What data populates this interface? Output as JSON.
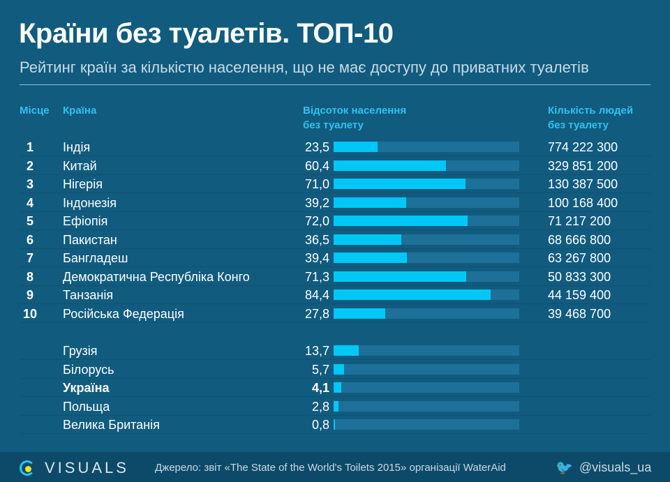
{
  "title": "Країни без туалетів. ТОП-10",
  "subtitle": "Рейтинг країн за кількістю населення, що не має доступу до приватних туалетів",
  "headers": {
    "rank": "Місце",
    "country": "Країна",
    "pct_line1": "Відсоток населення",
    "pct_line2": "без туалету",
    "count_line1": "Кількість людей",
    "count_line2": "без туалету"
  },
  "colors": {
    "background": "#115b7f",
    "bar": "#00c8f6",
    "track": "#1d7198",
    "header": "#2ec3f0"
  },
  "chart_data": {
    "type": "bar",
    "orientation": "horizontal",
    "xlim": [
      0,
      100
    ],
    "top10": [
      {
        "rank": "1",
        "country": "Індія",
        "pct": "23,5",
        "value": 23.5,
        "count": "774 222 300"
      },
      {
        "rank": "2",
        "country": "Китай",
        "pct": "60,4",
        "value": 60.4,
        "count": "329 851 200"
      },
      {
        "rank": "3",
        "country": "Нігерія",
        "pct": "71,0",
        "value": 71.0,
        "count": "130 387 500"
      },
      {
        "rank": "4",
        "country": "Індонезія",
        "pct": "39,2",
        "value": 39.2,
        "count": "100 168 400"
      },
      {
        "rank": "5",
        "country": "Ефіопія",
        "pct": "72,0",
        "value": 72.0,
        "count": "71 217 200"
      },
      {
        "rank": "6",
        "country": "Пакистан",
        "pct": "36,5",
        "value": 36.5,
        "count": "68 666 800"
      },
      {
        "rank": "7",
        "country": "Бангладеш",
        "pct": "39,4",
        "value": 39.4,
        "count": "63 267 800"
      },
      {
        "rank": "8",
        "country": "Демократична Республіка Конго",
        "pct": "71,3",
        "value": 71.3,
        "count": "50 833 300"
      },
      {
        "rank": "9",
        "country": "Танзанія",
        "pct": "84,4",
        "value": 84.4,
        "count": "44 159 400"
      },
      {
        "rank": "10",
        "country": "Російська Федерація",
        "pct": "27,8",
        "value": 27.8,
        "count": "39 468 700"
      }
    ],
    "others": [
      {
        "country": "Грузія",
        "pct": "13,7",
        "value": 13.7
      },
      {
        "country": "Білорусь",
        "pct": "5,7",
        "value": 5.7
      },
      {
        "country": "Україна",
        "pct": "4,1",
        "value": 4.1,
        "highlight": true
      },
      {
        "country": "Польща",
        "pct": "2,8",
        "value": 2.8
      },
      {
        "country": "Велика Британія",
        "pct": "0,8",
        "value": 0.8
      }
    ]
  },
  "footer": {
    "brand": "VISUALS",
    "source": "Джерело: звіт «The State of the World's Toilets 2015» організації WaterAid",
    "twitter": "@visuals_ua"
  }
}
